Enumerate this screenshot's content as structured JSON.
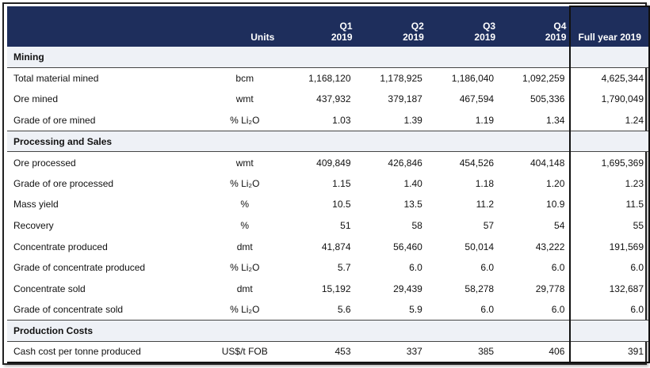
{
  "header": {
    "units": "Units",
    "quarters": [
      {
        "q": "Q1",
        "y": "2019"
      },
      {
        "q": "Q2",
        "y": "2019"
      },
      {
        "q": "Q3",
        "y": "2019"
      },
      {
        "q": "Q4",
        "y": "2019"
      }
    ],
    "full_year": "Full year 2019"
  },
  "sections": [
    {
      "title": "Mining",
      "rows": [
        {
          "label": "Total material mined",
          "units": "bcm",
          "values": [
            "1,168,120",
            "1,178,925",
            "1,186,040",
            "1,092,259"
          ],
          "fy": "4,625,344"
        },
        {
          "label": "Ore mined",
          "units": "wmt",
          "values": [
            "437,932",
            "379,187",
            "467,594",
            "505,336"
          ],
          "fy": "1,790,049"
        },
        {
          "label": "Grade of ore mined",
          "units": "% Li₂O",
          "values": [
            "1.03",
            "1.39",
            "1.19",
            "1.34"
          ],
          "fy": "1.24"
        }
      ]
    },
    {
      "title": "Processing and Sales",
      "rows": [
        {
          "label": "Ore processed",
          "units": "wmt",
          "values": [
            "409,849",
            "426,846",
            "454,526",
            "404,148"
          ],
          "fy": "1,695,369"
        },
        {
          "label": "Grade of ore processed",
          "units": "% Li₂O",
          "values": [
            "1.15",
            "1.40",
            "1.18",
            "1.20"
          ],
          "fy": "1.23"
        },
        {
          "label": "Mass yield",
          "units": "%",
          "values": [
            "10.5",
            "13.5",
            "11.2",
            "10.9"
          ],
          "fy": "11.5"
        },
        {
          "label": "Recovery",
          "units": "%",
          "values": [
            "51",
            "58",
            "57",
            "54"
          ],
          "fy": "55"
        },
        {
          "label": "Concentrate produced",
          "units": "dmt",
          "values": [
            "41,874",
            "56,460",
            "50,014",
            "43,222"
          ],
          "fy": "191,569"
        },
        {
          "label": "Grade of concentrate produced",
          "units": "% Li₂O",
          "values": [
            "5.7",
            "6.0",
            "6.0",
            "6.0"
          ],
          "fy": "6.0"
        },
        {
          "label": "Concentrate sold",
          "units": "dmt",
          "values": [
            "15,192",
            "29,439",
            "58,278",
            "29,778"
          ],
          "fy": "132,687"
        },
        {
          "label": "Grade of concentrate sold",
          "units": "% Li₂O",
          "values": [
            "5.6",
            "5.9",
            "6.0",
            "6.0"
          ],
          "fy": "6.0"
        }
      ]
    },
    {
      "title": "Production Costs",
      "rows": [
        {
          "label": "Cash cost per tonne produced",
          "units": "US$/t FOB",
          "values": [
            "453",
            "337",
            "385",
            "406"
          ],
          "fy": "391"
        }
      ]
    }
  ]
}
